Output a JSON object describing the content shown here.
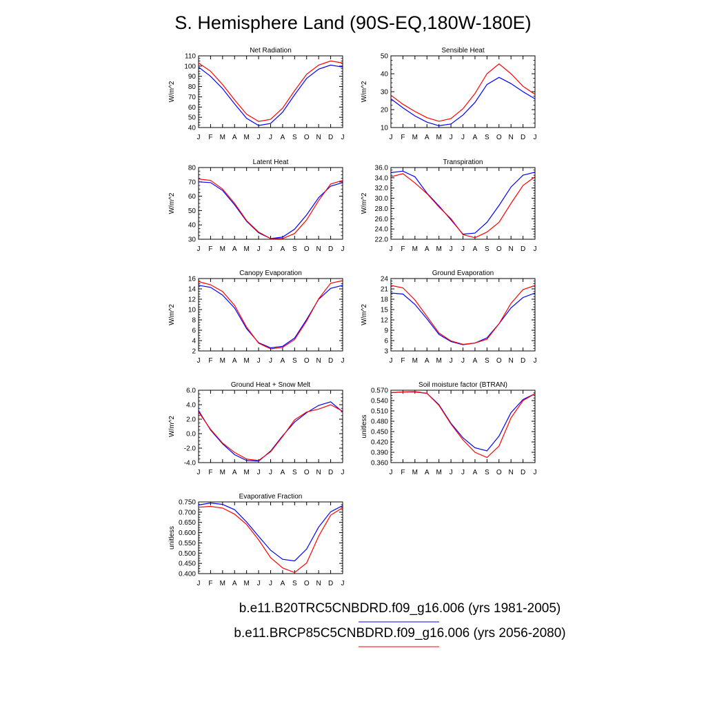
{
  "title": "S. Hemisphere Land (90S-EQ,180W-180E)",
  "month_labels": [
    "J",
    "F",
    "M",
    "A",
    "M",
    "J",
    "J",
    "A",
    "S",
    "O",
    "N",
    "D",
    "J"
  ],
  "series_colors": {
    "historical": "#0000ff",
    "future": "#ff0000"
  },
  "legend": [
    {
      "label": "b.e11.B20TRC5CNBDRD.f09_g16.006 (yrs 1981-2005)",
      "color": "#0000ff"
    },
    {
      "label": "b.e11.BRCP85C5CNBDRD.f09_g16.006 (yrs 2056-2080)",
      "color": "#ff0000"
    }
  ],
  "chart_data": [
    {
      "type": "line",
      "title": "Net Radiation",
      "ylabel": "W/m^2",
      "ylim": [
        40,
        110
      ],
      "yticks": [
        "40",
        "50",
        "60",
        "70",
        "80",
        "90",
        "100",
        "110"
      ],
      "x": [
        "J",
        "F",
        "M",
        "A",
        "M",
        "J",
        "J",
        "A",
        "S",
        "O",
        "N",
        "D",
        "J"
      ],
      "series": [
        {
          "values": [
            99,
            90,
            78,
            63,
            49,
            42,
            44,
            55,
            72,
            88,
            97,
            101,
            99
          ],
          "color": "#0000ff"
        },
        {
          "values": [
            103,
            95,
            82,
            67,
            53,
            46,
            48,
            59,
            76,
            92,
            101,
            105,
            103
          ],
          "color": "#ff0000"
        }
      ]
    },
    {
      "type": "line",
      "title": "Sensible Heat",
      "ylabel": "W/m^2",
      "ylim": [
        10,
        50
      ],
      "yticks": [
        "10",
        "20",
        "30",
        "40",
        "50"
      ],
      "x": [
        "J",
        "F",
        "M",
        "A",
        "M",
        "J",
        "J",
        "A",
        "S",
        "O",
        "N",
        "D",
        "J"
      ],
      "series": [
        {
          "values": [
            26,
            21,
            16.5,
            13,
            11,
            12,
            17,
            24,
            34,
            38,
            34.5,
            30,
            26
          ],
          "color": "#0000ff"
        },
        {
          "values": [
            28,
            23,
            19,
            15.5,
            13.5,
            15,
            20.5,
            29,
            40,
            45.5,
            40,
            33,
            28.5
          ],
          "color": "#ff0000"
        }
      ]
    },
    {
      "type": "line",
      "title": "Latent Heat",
      "ylabel": "W/m^2",
      "ylim": [
        30,
        80
      ],
      "yticks": [
        "30",
        "40",
        "50",
        "60",
        "70",
        "80"
      ],
      "x": [
        "J",
        "F",
        "M",
        "A",
        "M",
        "J",
        "J",
        "A",
        "S",
        "O",
        "N",
        "D",
        "J"
      ],
      "series": [
        {
          "values": [
            70,
            69.5,
            64,
            54,
            42.5,
            34.5,
            30.5,
            31.5,
            37,
            47,
            59,
            67,
            69.5
          ],
          "color": "#0000ff"
        },
        {
          "values": [
            72,
            71,
            65,
            55,
            43,
            35,
            30.5,
            30.5,
            34,
            43.5,
            57,
            68.5,
            71
          ],
          "color": "#ff0000"
        }
      ]
    },
    {
      "type": "line",
      "title": "Transpiration",
      "ylabel": "W/m^2",
      "ylim": [
        22,
        36
      ],
      "yticks": [
        "22.0",
        "24.0",
        "26.0",
        "28.0",
        "30.0",
        "32.0",
        "34.0",
        "36.0"
      ],
      "x": [
        "J",
        "F",
        "M",
        "A",
        "M",
        "J",
        "J",
        "A",
        "S",
        "O",
        "N",
        "D",
        "J"
      ],
      "series": [
        {
          "values": [
            35.0,
            35.3,
            34.2,
            31.0,
            28.5,
            25.8,
            23.0,
            23.2,
            25.3,
            28.6,
            32.2,
            34.5,
            35.1
          ],
          "color": "#0000ff"
        },
        {
          "values": [
            34.2,
            34.8,
            33.0,
            30.9,
            28.3,
            26.0,
            22.9,
            22.3,
            23.4,
            25.3,
            29.0,
            32.5,
            34.2
          ],
          "color": "#ff0000"
        }
      ]
    },
    {
      "type": "line",
      "title": "Canopy Evaporation",
      "ylabel": "W/m^2",
      "ylim": [
        2,
        16
      ],
      "yticks": [
        "2",
        "4",
        "6",
        "8",
        "10",
        "12",
        "14",
        "16"
      ],
      "x": [
        "J",
        "F",
        "M",
        "A",
        "M",
        "J",
        "J",
        "A",
        "S",
        "O",
        "N",
        "D",
        "J"
      ],
      "series": [
        {
          "values": [
            14.7,
            14.3,
            12.8,
            10.3,
            6.3,
            3.6,
            2.6,
            2.9,
            4.5,
            8.1,
            12.0,
            14.1,
            14.7
          ],
          "color": "#0000ff"
        },
        {
          "values": [
            15.4,
            14.8,
            13.5,
            10.8,
            6.6,
            3.5,
            2.4,
            2.7,
            4.2,
            7.8,
            12.1,
            15.1,
            15.6
          ],
          "color": "#ff0000"
        }
      ]
    },
    {
      "type": "line",
      "title": "Ground Evaporation",
      "ylabel": "W/m^2",
      "ylim": [
        3,
        24
      ],
      "yticks": [
        "3",
        "6",
        "9",
        "12",
        "15",
        "18",
        "21",
        "24"
      ],
      "x": [
        "J",
        "F",
        "M",
        "A",
        "M",
        "J",
        "J",
        "A",
        "S",
        "O",
        "N",
        "D",
        "J"
      ],
      "series": [
        {
          "values": [
            19.8,
            19.5,
            16.5,
            12.3,
            7.8,
            5.7,
            4.8,
            5.3,
            6.8,
            10.9,
            15.5,
            18.5,
            19.8
          ],
          "color": "#0000ff"
        },
        {
          "values": [
            22.0,
            21.3,
            17.8,
            13.0,
            8.2,
            5.9,
            4.9,
            5.3,
            6.4,
            10.9,
            16.8,
            20.8,
            22.0
          ],
          "color": "#ff0000"
        }
      ]
    },
    {
      "type": "line",
      "title": "Ground Heat + Snow Melt",
      "ylabel": "W/m^2",
      "ylim": [
        -4,
        6
      ],
      "yticks": [
        "-4.0",
        "-2.0",
        "0.0",
        "2.0",
        "4.0",
        "6.0"
      ],
      "x": [
        "J",
        "F",
        "M",
        "A",
        "M",
        "J",
        "J",
        "A",
        "S",
        "O",
        "N",
        "D",
        "J"
      ],
      "series": [
        {
          "values": [
            3.2,
            0.5,
            -1.4,
            -2.9,
            -3.7,
            -3.8,
            -2.4,
            -0.3,
            1.6,
            2.9,
            3.9,
            4.4,
            3.0
          ],
          "color": "#0000ff"
        },
        {
          "values": [
            3.0,
            0.6,
            -1.3,
            -2.6,
            -3.5,
            -3.7,
            -2.5,
            -0.4,
            1.9,
            3.0,
            3.4,
            4.0,
            3.1
          ],
          "color": "#ff0000"
        }
      ]
    },
    {
      "type": "line",
      "title": "Soil moisture factor (BTRAN)",
      "ylabel": "unitless",
      "ylim": [
        0.36,
        0.57
      ],
      "yticks": [
        "0.360",
        "0.390",
        "0.420",
        "0.450",
        "0.480",
        "0.510",
        "0.540",
        "0.570"
      ],
      "x": [
        "J",
        "F",
        "M",
        "A",
        "M",
        "J",
        "J",
        "A",
        "S",
        "O",
        "N",
        "D",
        "J"
      ],
      "series": [
        {
          "values": [
            0.563,
            0.565,
            0.565,
            0.561,
            0.528,
            0.474,
            0.432,
            0.403,
            0.394,
            0.437,
            0.505,
            0.543,
            0.56
          ],
          "color": "#0000ff"
        },
        {
          "values": [
            0.563,
            0.565,
            0.566,
            0.561,
            0.526,
            0.472,
            0.426,
            0.39,
            0.375,
            0.408,
            0.49,
            0.54,
            0.56
          ],
          "color": "#ff0000"
        }
      ]
    },
    {
      "type": "line",
      "title": "Evaporative Fraction",
      "ylabel": "unitless",
      "ylim": [
        0.4,
        0.75
      ],
      "yticks": [
        "0.400",
        "0.450",
        "0.500",
        "0.550",
        "0.600",
        "0.650",
        "0.700",
        "0.750"
      ],
      "x": [
        "J",
        "F",
        "M",
        "A",
        "M",
        "J",
        "J",
        "A",
        "S",
        "O",
        "N",
        "D",
        "J"
      ],
      "series": [
        {
          "values": [
            0.735,
            0.745,
            0.738,
            0.712,
            0.652,
            0.582,
            0.514,
            0.47,
            0.462,
            0.52,
            0.627,
            0.702,
            0.732
          ],
          "color": "#0000ff"
        },
        {
          "values": [
            0.724,
            0.728,
            0.72,
            0.69,
            0.64,
            0.565,
            0.478,
            0.428,
            0.405,
            0.452,
            0.583,
            0.685,
            0.722
          ],
          "color": "#ff0000"
        }
      ]
    }
  ]
}
